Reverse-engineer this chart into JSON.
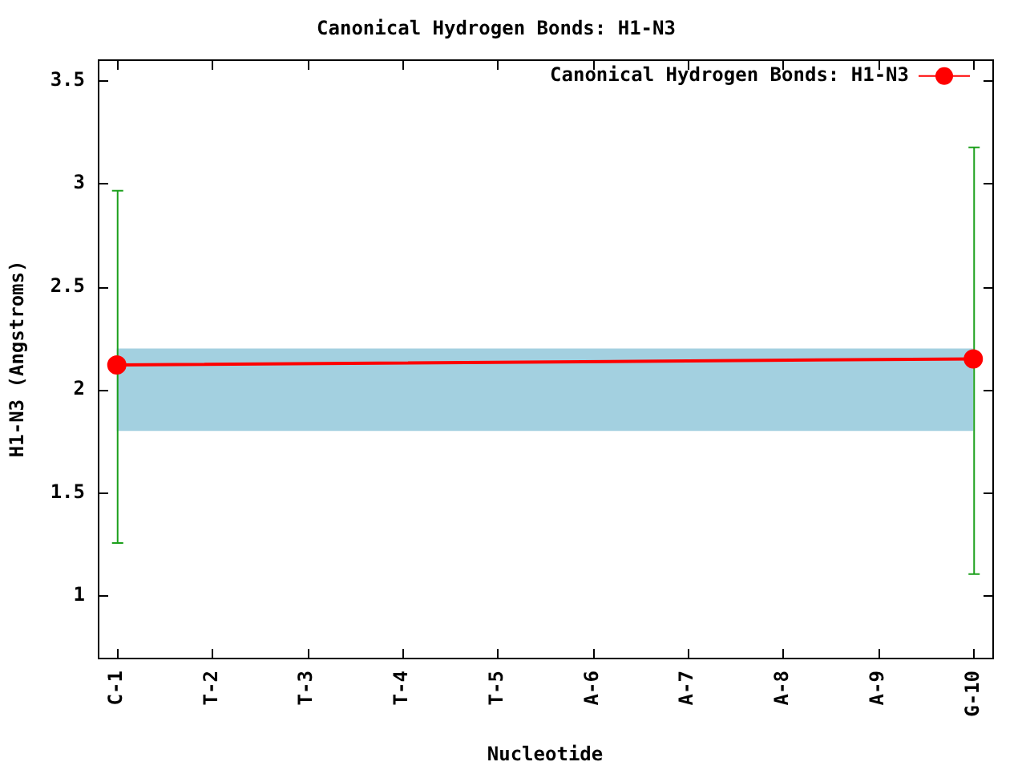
{
  "chart_data": {
    "type": "line",
    "title": "Canonical Hydrogen Bonds: H1-N3",
    "xlabel": "Nucleotide",
    "ylabel": "H1-N3 (Angstroms)",
    "categories": [
      "C-1",
      "T-2",
      "T-3",
      "T-4",
      "T-5",
      "A-6",
      "A-7",
      "A-8",
      "A-9",
      "G-10"
    ],
    "series": [
      {
        "name": "Canonical Hydrogen Bonds: H1-N3",
        "color": "#ff0000",
        "values": [
          2.12,
          null,
          null,
          null,
          null,
          null,
          null,
          null,
          null,
          2.15
        ],
        "errors": [
          [
            1.26,
            2.97
          ],
          null,
          null,
          null,
          null,
          null,
          null,
          null,
          null,
          [
            1.11,
            3.18
          ]
        ]
      }
    ],
    "ylim": [
      0.7,
      3.6
    ],
    "yticks": [
      1,
      1.5,
      2,
      2.5,
      3,
      3.5
    ],
    "bands": [
      {
        "axis": "y",
        "from": 1.8,
        "to": 2.2,
        "color": "#a3d0e0"
      }
    ],
    "grid": false,
    "legend": "top right",
    "marker": "circle",
    "line_style": "solid"
  }
}
